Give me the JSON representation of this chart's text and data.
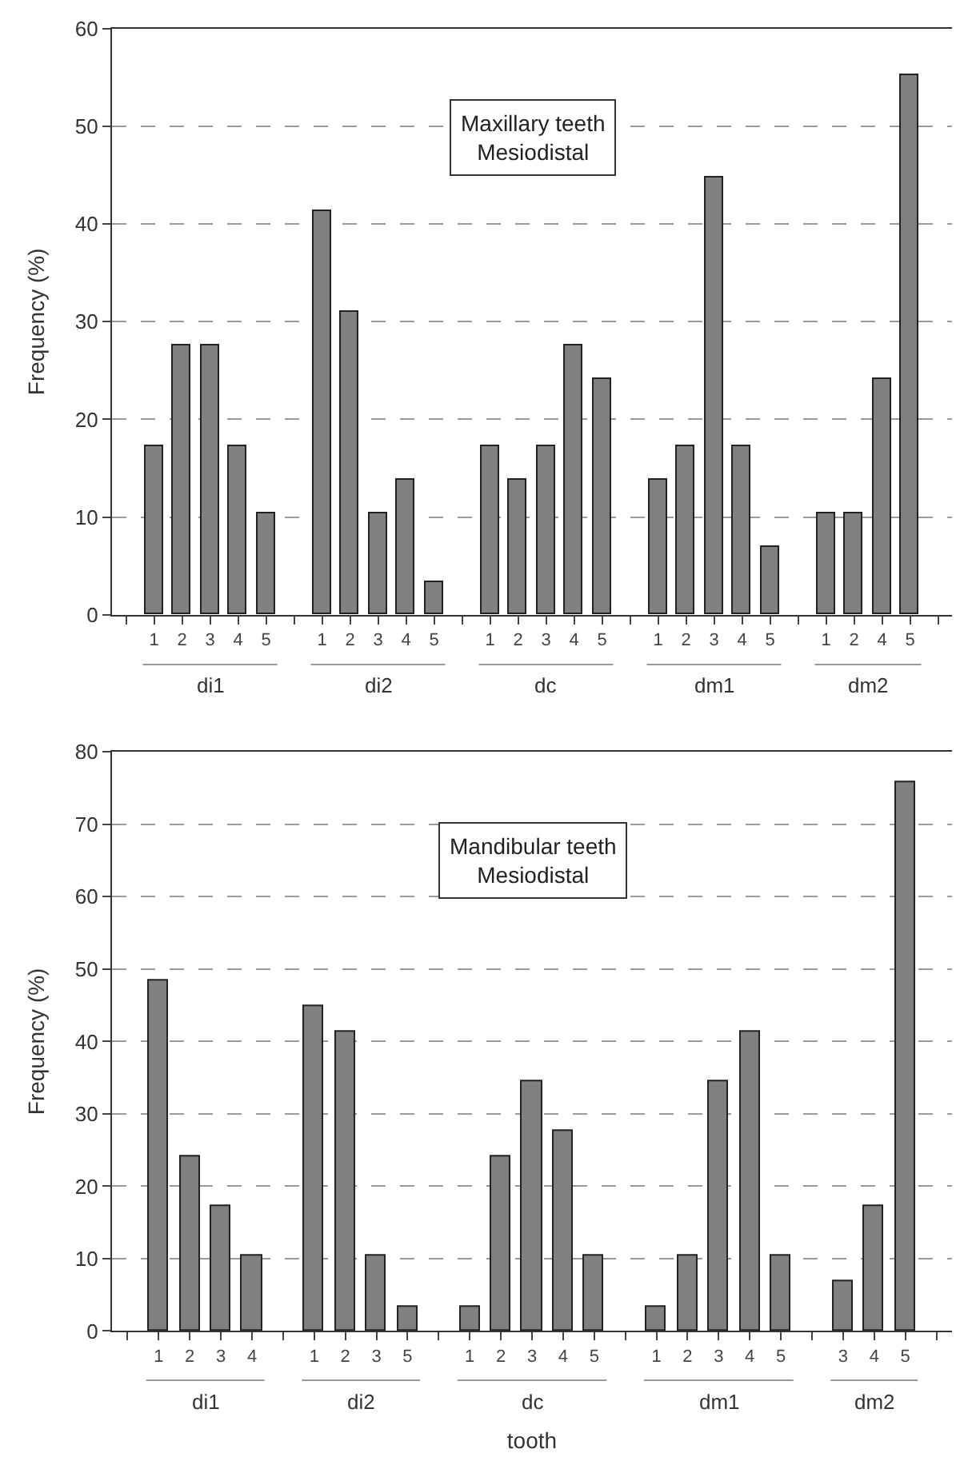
{
  "chart_data": [
    {
      "type": "bar",
      "ylabel": "Frequency (%)",
      "categories": [
        null,
        "1",
        "2",
        "3",
        "4",
        "5",
        null,
        "1",
        "2",
        "3",
        "4",
        "5",
        null,
        "1",
        "2",
        "3",
        "4",
        "5",
        null,
        "1",
        "2",
        "3",
        "4",
        "5",
        null,
        "1",
        "2",
        "4",
        "5",
        null
      ],
      "values": [
        null,
        17.2,
        27.6,
        27.6,
        17.2,
        10.3,
        null,
        41.4,
        31.0,
        10.3,
        13.8,
        3.4,
        null,
        17.2,
        13.8,
        17.2,
        27.6,
        24.1,
        null,
        13.8,
        17.2,
        44.8,
        17.2,
        6.9,
        null,
        10.3,
        10.3,
        24.1,
        55.2,
        null
      ],
      "color": "#808080",
      "ylim": [
        0,
        60
      ],
      "yticks": [
        0,
        10,
        20,
        30,
        40,
        50,
        60
      ],
      "grid": "y",
      "annotations": [
        "Maxillary teeth\nMesiodistal",
        "di1",
        "di2",
        "dc",
        "dm1",
        "dm2"
      ]
    },
    {
      "type": "bar",
      "ylabel": "Frequency (%)",
      "xlabel": "tooth",
      "categories": [
        null,
        "1",
        "2",
        "3",
        "4",
        null,
        "1",
        "2",
        "3",
        "5",
        null,
        "1",
        "2",
        "3",
        "4",
        "5",
        null,
        "1",
        "2",
        "3",
        "4",
        "5",
        null,
        "3",
        "4",
        "5",
        null
      ],
      "values": [
        null,
        48.3,
        24.1,
        17.2,
        10.3,
        null,
        44.8,
        41.4,
        10.3,
        3.4,
        null,
        3.4,
        24.1,
        34.5,
        27.6,
        10.3,
        null,
        3.4,
        10.3,
        34.5,
        41.4,
        10.3,
        null,
        6.9,
        17.2,
        75.9,
        null
      ],
      "color": "#808080",
      "ylim": [
        0,
        80
      ],
      "yticks": [
        0,
        10,
        20,
        30,
        40,
        50,
        60,
        70,
        80
      ],
      "grid": "y",
      "annotations": [
        "Mandibular teeth\nMesiodistal",
        "di1",
        "di2",
        "dc",
        "dm1",
        "dm2"
      ]
    }
  ]
}
